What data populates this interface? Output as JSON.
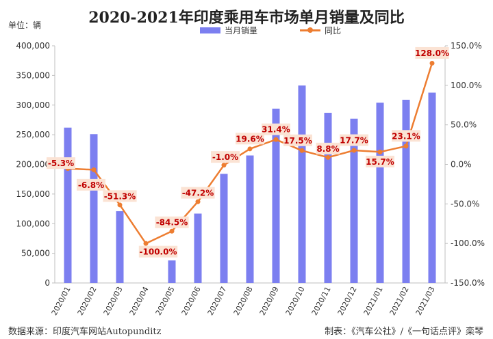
{
  "title": "2020-2021年印度乘用车市场单月销量及同比",
  "unit_label": "单位：辆",
  "legend": {
    "bar_label": "当月销量",
    "line_label": "同比"
  },
  "footer": {
    "source": "数据来源：印度汽车网站Autopunditz",
    "credit": "制表：《汽车公社》/《一句话点评》栾琴"
  },
  "colors": {
    "bar": "#7c7ff0",
    "line": "#ed7d31",
    "label_bg": "#fbe3d4",
    "label_text": "#c00000"
  },
  "chart_data": {
    "type": "bar",
    "categories": [
      "2020/01",
      "2020/02",
      "2020/03",
      "2020/04",
      "2020/05",
      "2020/06",
      "2020/07",
      "2020/08",
      "2020/09",
      "2020/10",
      "2020/11",
      "2020/12",
      "2021/01",
      "2021/02",
      "2021/03"
    ],
    "series": [
      {
        "name": "当月销量",
        "type": "bar",
        "axis": "left",
        "values": [
          262000,
          251000,
          121000,
          0,
          38000,
          117000,
          184000,
          215000,
          294000,
          333000,
          287000,
          277000,
          304000,
          309000,
          321000
        ]
      },
      {
        "name": "同比",
        "type": "line",
        "axis": "right",
        "values": [
          -5.3,
          -6.8,
          -51.3,
          -100.0,
          -84.5,
          -47.2,
          -1.0,
          19.6,
          31.4,
          17.5,
          8.8,
          17.7,
          15.7,
          23.1,
          128.0
        ],
        "labels": [
          "-5.3%",
          "-6.8%",
          "-51.3%",
          "-100.0%",
          "-84.5%",
          "-47.2%",
          "-1.0%",
          "19.6%",
          "31.4%",
          "17.5%",
          "8.8%",
          "17.7%",
          "15.7%",
          "23.1%",
          "128.0%"
        ]
      }
    ],
    "y_left": {
      "range": [
        0,
        400000
      ],
      "ticks": [
        0,
        50000,
        100000,
        150000,
        200000,
        250000,
        300000,
        350000,
        400000
      ],
      "tick_labels": [
        "0",
        "50,000",
        "100,000",
        "150,000",
        "200,000",
        "250,000",
        "300,000",
        "350,000",
        "400,000"
      ]
    },
    "y_right": {
      "range": [
        -150,
        150
      ],
      "ticks": [
        -150,
        -100,
        -50,
        0,
        50,
        100,
        150
      ],
      "tick_labels": [
        "-150.0%",
        "-100.0%",
        "-50.0%",
        "0.0%",
        "50.0%",
        "100.0%",
        "150.0%"
      ]
    },
    "grid": false,
    "legend_position": "top"
  }
}
